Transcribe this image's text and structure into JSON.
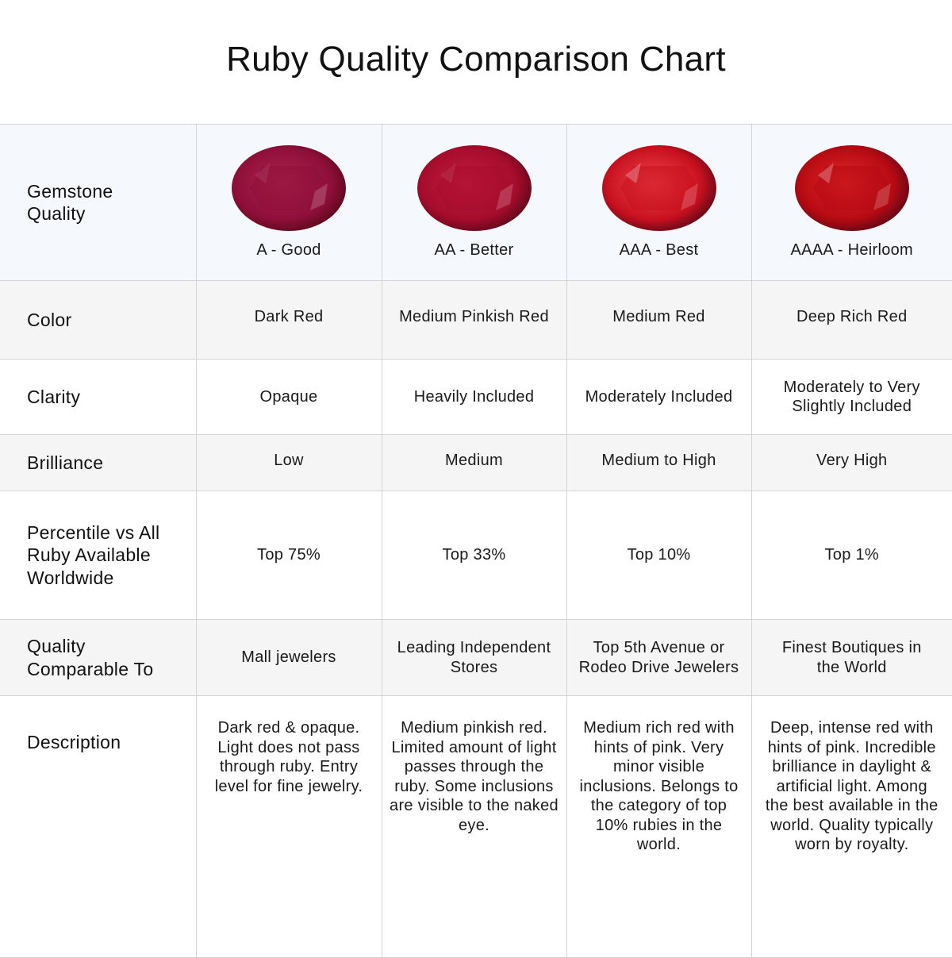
{
  "title": "Ruby Quality Comparison Chart",
  "rows": {
    "gemstone_quality": {
      "label": "Gemstone Quality",
      "grades": [
        {
          "label": "A - Good",
          "gem_color": "#8e0f3a",
          "gem_highlight": "#b0254f"
        },
        {
          "label": "AA - Better",
          "gem_color": "#a50c2c",
          "gem_highlight": "#c81d45"
        },
        {
          "label": "AAA - Best",
          "gem_color": "#c8101e",
          "gem_highlight": "#f04850"
        },
        {
          "label": "AAAA - Heirloom",
          "gem_color": "#b50a12",
          "gem_highlight": "#e62a2a"
        }
      ]
    },
    "color": {
      "label": "Color",
      "values": [
        "Dark Red",
        "Medium Pinkish Red",
        "Medium Red",
        "Deep Rich Red"
      ]
    },
    "clarity": {
      "label": "Clarity",
      "values": [
        "Opaque",
        "Heavily Included",
        "Moderately Included",
        "Moderately to Very Slightly Included"
      ]
    },
    "brilliance": {
      "label": "Brilliance",
      "values": [
        "Low",
        "Medium",
        "Medium to High",
        "Very High"
      ]
    },
    "percentile": {
      "label": "Percentile vs All Ruby Available Worldwide",
      "values": [
        "Top 75%",
        "Top 33%",
        "Top 10%",
        "Top 1%"
      ]
    },
    "comparable": {
      "label": "Quality Comparable To",
      "values": [
        "Mall jewelers",
        "Leading Independent Stores",
        "Top 5th Avenue or Rodeo Drive Jewelers",
        "Finest Boutiques in the World"
      ]
    },
    "description": {
      "label": "Description",
      "values": [
        "Dark red & opaque. Light does not pass through ruby. Entry level for fine jewelry.",
        "Medium pinkish red. Limited amount of light passes through the ruby. Some inclusions are visible to the naked eye.",
        "Medium rich red with hints of pink. Very minor visible inclusions. Belongs to the category of top 10% rubies in the world.",
        "Deep, intense red with hints of pink. Incredible brilliance in daylight & artificial light. Among the best available in the world. Quality typically worn by royalty."
      ]
    }
  }
}
